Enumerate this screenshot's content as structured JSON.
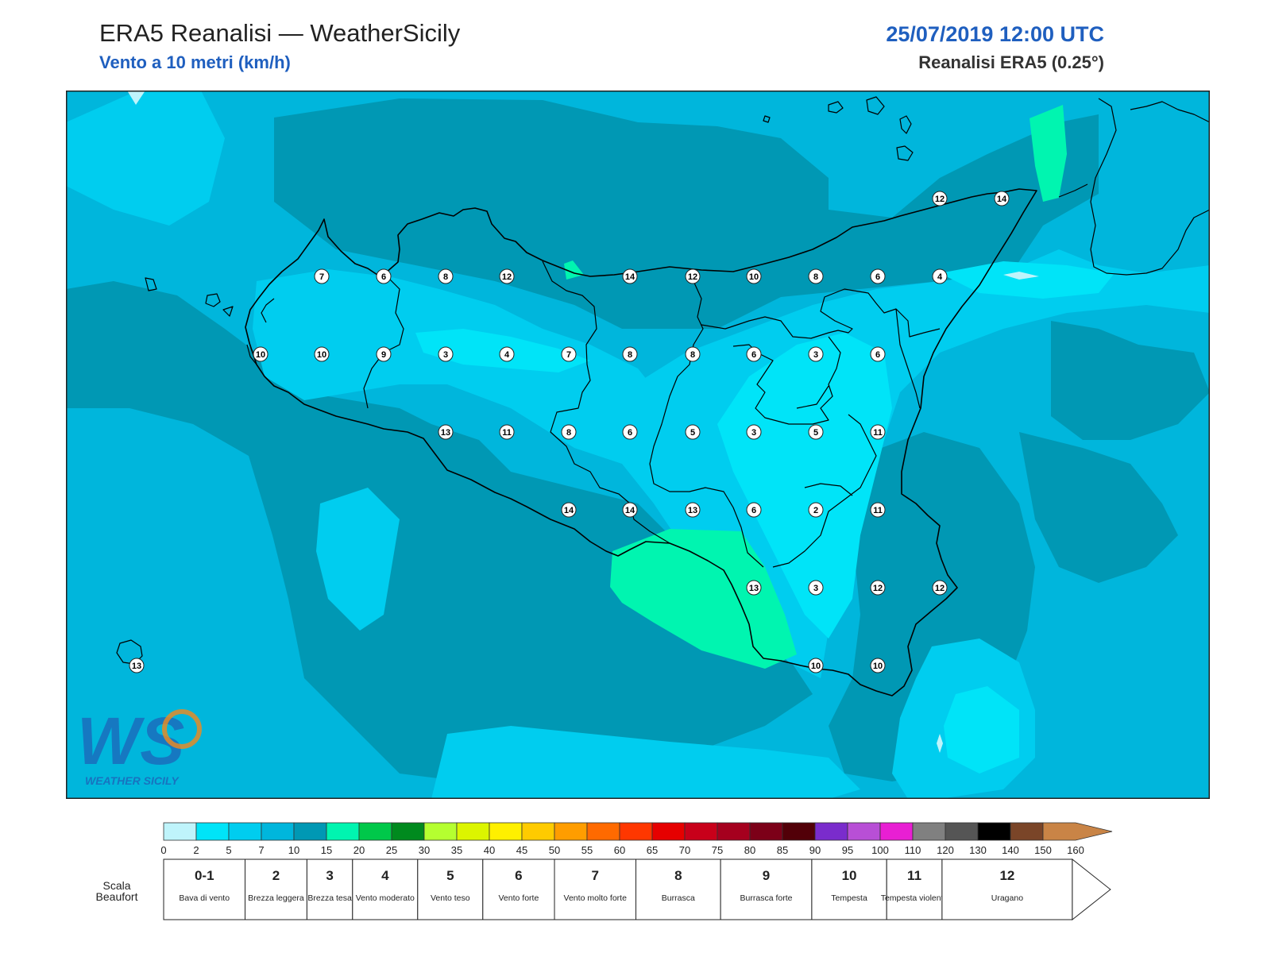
{
  "header": {
    "title": "ERA5 Reanalisi — WeatherSicily",
    "subtitle": "Vento a 10 metri (km/h)",
    "datetime": "25/07/2019 12:00 UTC",
    "model": "Reanalisi ERA5 (0.25°)"
  },
  "logo": {
    "letters": "WS",
    "text": "WEATHER SICILY"
  },
  "wind_points": [
    {
      "id": "p1",
      "v": "7"
    },
    {
      "id": "p2",
      "v": "6"
    },
    {
      "id": "p3",
      "v": "8"
    },
    {
      "id": "p4",
      "v": "12"
    },
    {
      "id": "p5",
      "v": "14"
    },
    {
      "id": "p6",
      "v": "12"
    },
    {
      "id": "p7",
      "v": "10"
    },
    {
      "id": "p8",
      "v": "8"
    },
    {
      "id": "p9",
      "v": "6"
    },
    {
      "id": "p10",
      "v": "4"
    },
    {
      "id": "p11",
      "v": "12"
    },
    {
      "id": "p12",
      "v": "14"
    },
    {
      "id": "p13",
      "v": "10"
    },
    {
      "id": "p14",
      "v": "10"
    },
    {
      "id": "p15",
      "v": "9"
    },
    {
      "id": "p16",
      "v": "3"
    },
    {
      "id": "p17",
      "v": "4"
    },
    {
      "id": "p18",
      "v": "7"
    },
    {
      "id": "p19",
      "v": "8"
    },
    {
      "id": "p20",
      "v": "8"
    },
    {
      "id": "p21",
      "v": "6"
    },
    {
      "id": "p22",
      "v": "3"
    },
    {
      "id": "p23",
      "v": "6"
    },
    {
      "id": "p24",
      "v": "13"
    },
    {
      "id": "p25",
      "v": "11"
    },
    {
      "id": "p26",
      "v": "8"
    },
    {
      "id": "p27",
      "v": "6"
    },
    {
      "id": "p28",
      "v": "5"
    },
    {
      "id": "p29",
      "v": "3"
    },
    {
      "id": "p30",
      "v": "5"
    },
    {
      "id": "p31",
      "v": "11"
    },
    {
      "id": "p32",
      "v": "14"
    },
    {
      "id": "p33",
      "v": "14"
    },
    {
      "id": "p34",
      "v": "13"
    },
    {
      "id": "p35",
      "v": "6"
    },
    {
      "id": "p36",
      "v": "2"
    },
    {
      "id": "p37",
      "v": "11"
    },
    {
      "id": "p38",
      "v": "13"
    },
    {
      "id": "p39",
      "v": "3"
    },
    {
      "id": "p40",
      "v": "12"
    },
    {
      "id": "p41",
      "v": "12"
    },
    {
      "id": "p42",
      "v": "10"
    },
    {
      "id": "p43",
      "v": "10"
    },
    {
      "id": "p44",
      "v": "13"
    }
  ],
  "colorbar": {
    "ticks": [
      "0",
      "2",
      "5",
      "7",
      "10",
      "15",
      "20",
      "25",
      "30",
      "35",
      "40",
      "45",
      "50",
      "55",
      "60",
      "65",
      "70",
      "75",
      "80",
      "85",
      "90",
      "95",
      "100",
      "110",
      "120",
      "130",
      "140",
      "150",
      "160"
    ],
    "colors": [
      "#bff4fb",
      "#00e4f8",
      "#00cdef",
      "#00b6dc",
      "#0098b4",
      "#00f5b0",
      "#00c84a",
      "#008a1e",
      "#b5ff30",
      "#dcf500",
      "#fff000",
      "#ffcb00",
      "#ff9d00",
      "#ff6a00",
      "#ff3700",
      "#e60000",
      "#c8001a",
      "#a5001e",
      "#7c0018",
      "#520008",
      "#7a2ccc",
      "#b84fd6",
      "#e81fd3",
      "#808080",
      "#555555",
      "#000000",
      "#7a4528",
      "#c98446"
    ]
  },
  "beaufort": {
    "title": "Scala Beaufort",
    "classes": [
      {
        "num": "0-1",
        "label": "Bava di vento"
      },
      {
        "num": "2",
        "label": "Brezza leggera"
      },
      {
        "num": "3",
        "label": "Brezza tesa"
      },
      {
        "num": "4",
        "label": "Vento moderato"
      },
      {
        "num": "5",
        "label": "Vento teso"
      },
      {
        "num": "6",
        "label": "Vento forte"
      },
      {
        "num": "7",
        "label": "Vento molto forte"
      },
      {
        "num": "8",
        "label": "Burrasca"
      },
      {
        "num": "9",
        "label": "Burrasca forte"
      },
      {
        "num": "10",
        "label": "Tempesta"
      },
      {
        "num": "11",
        "label": "Tempesta violenta"
      },
      {
        "num": "12",
        "label": "Uragano"
      }
    ]
  },
  "colors": {
    "c2": "#00e4f8",
    "c5": "#00cdef",
    "c7": "#00b6dc",
    "c10": "#0098b4",
    "c15": "#00f5b0",
    "c0": "#bff4fb",
    "title_blue": "#1f5fbf"
  }
}
